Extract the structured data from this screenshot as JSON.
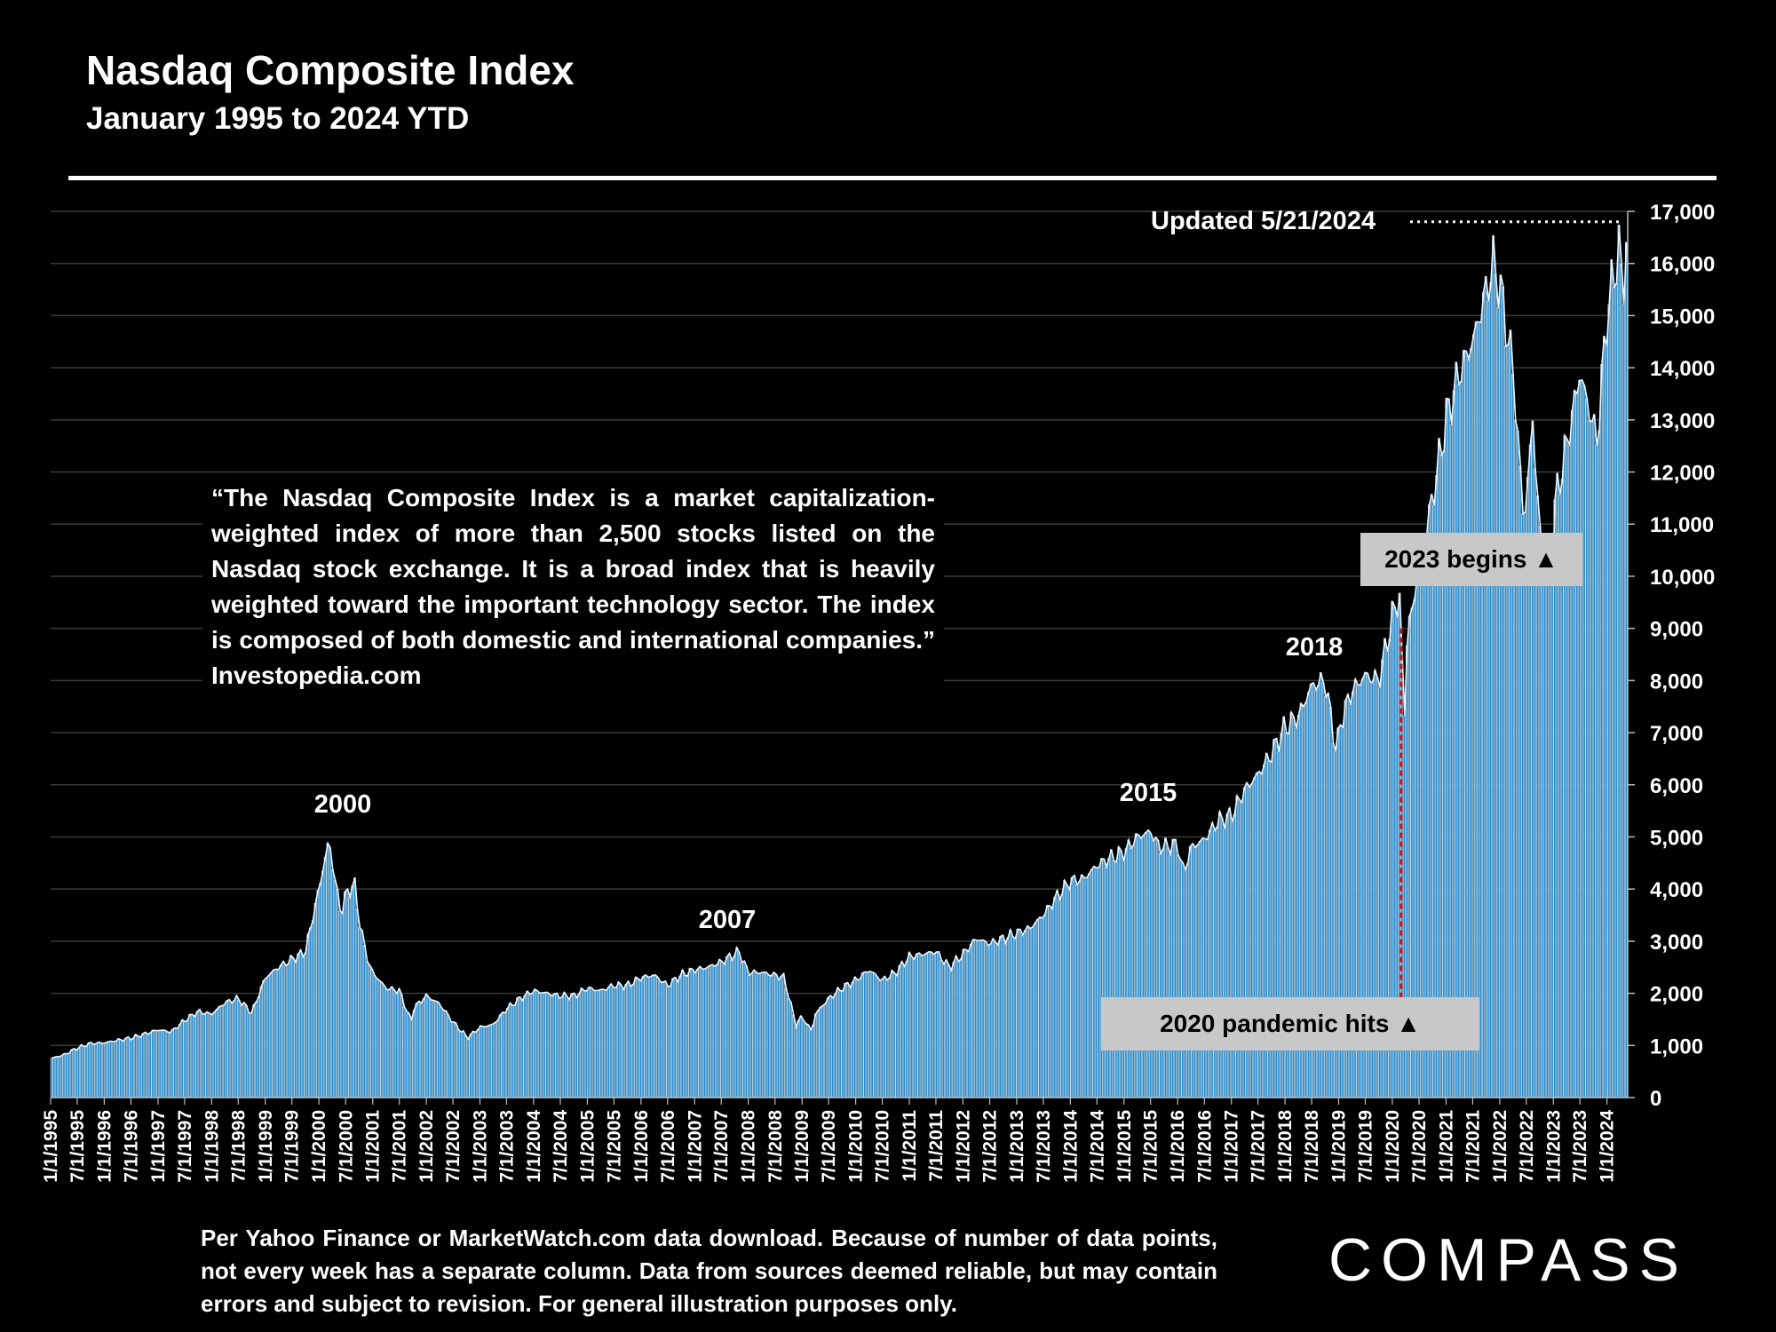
{
  "header": {
    "title": "Nasdaq Composite Index",
    "subtitle": "January 1995 to 2024 YTD"
  },
  "quote": "“The Nasdaq Composite Index is a market capitalization-weighted index of more than 2,500 stocks listed on the Nasdaq stock exchange. It is a broad index that is heavily weighted toward the important technology sector. The index is composed of both domestic and international companies.” Investopedia.com",
  "annotations": {
    "updated": "Updated 5/21/2024",
    "y2000": "2000",
    "y2007": "2007",
    "y2015": "2015",
    "y2018": "2018",
    "begins2023": "2023 begins ▲",
    "pandemic2020": "2020 pandemic hits ▲"
  },
  "footnote": "Per Yahoo Finance or MarketWatch.com data download. Because of number of data points, not every week has a separate column. Data from sources deemed reliable, but may contain errors and subject to revision. For general illustration purposes only.",
  "logo": "COMPASS",
  "colors": {
    "bar": "#2b8ccc",
    "bar_edge": "#d9eefb",
    "background": "#000000",
    "marker": "#cc1111",
    "tag_bg": "#c8c8c8"
  },
  "chart_data": {
    "type": "bar",
    "title": "Nasdaq Composite Index",
    "subtitle": "January 1995 to 2024 YTD",
    "ylim": [
      0,
      17000
    ],
    "yticks": [
      "0",
      "1,000",
      "2,000",
      "3,000",
      "4,000",
      "5,000",
      "6,000",
      "7,000",
      "8,000",
      "9,000",
      "10,000",
      "11,000",
      "12,000",
      "13,000",
      "14,000",
      "15,000",
      "16,000",
      "17,000"
    ],
    "ytick_values": [
      0,
      1000,
      2000,
      3000,
      4000,
      5000,
      6000,
      7000,
      8000,
      9000,
      10000,
      11000,
      12000,
      13000,
      14000,
      15000,
      16000,
      17000
    ],
    "grid": true,
    "x_start": "1/1/1995",
    "x_end": "5/21/2024",
    "xticks": [
      "1/1/1995",
      "7/1/1995",
      "1/1/1996",
      "7/1/1996",
      "1/1/1997",
      "7/1/1997",
      "1/1/1998",
      "7/1/1998",
      "1/1/1999",
      "7/1/1999",
      "1/1/2000",
      "7/1/2000",
      "1/1/2001",
      "7/1/2001",
      "1/1/2002",
      "7/1/2002",
      "1/1/2003",
      "7/1/2003",
      "1/1/2004",
      "7/1/2004",
      "1/1/2005",
      "7/1/2005",
      "1/1/2006",
      "7/1/2006",
      "1/1/2007",
      "7/1/2007",
      "1/1/2008",
      "7/1/2008",
      "1/1/2009",
      "7/1/2009",
      "1/1/2010",
      "7/1/2010",
      "1/1/2011",
      "7/1/2011",
      "1/1/2012",
      "7/1/2012",
      "1/1/2013",
      "7/1/2013",
      "1/1/2014",
      "7/1/2014",
      "1/1/2015",
      "7/1/2015",
      "1/1/2016",
      "7/1/2016",
      "1/1/2017",
      "7/1/2017",
      "1/1/2018",
      "7/1/2018",
      "1/1/2019",
      "7/1/2019",
      "1/1/2020",
      "7/1/2020",
      "1/1/2021",
      "7/1/2021",
      "1/1/2022",
      "7/1/2022",
      "1/1/2023",
      "7/1/2023",
      "1/1/2024"
    ],
    "series": [
      {
        "x": [
          "1/1/1995",
          "4/1/1995",
          "7/1/1995",
          "10/1/1995",
          "1/1/1996",
          "4/1/1996",
          "7/1/1996",
          "10/1/1996",
          "1/1/1997",
          "4/1/1997",
          "7/1/1997",
          "10/1/1997",
          "1/1/1998",
          "4/1/1998",
          "7/1/1998",
          "10/1/1998",
          "1/1/1999",
          "4/1/1999",
          "7/1/1999",
          "10/1/1999",
          "1/1/2000",
          "3/10/2000",
          "4/1/2000",
          "6/1/2000",
          "7/1/2000",
          "9/1/2000",
          "10/1/2000",
          "12/1/2000",
          "1/1/2001",
          "4/1/2001",
          "7/1/2001",
          "9/20/2001",
          "10/1/2001",
          "1/1/2002",
          "4/1/2002",
          "7/1/2002",
          "10/9/2002",
          "1/1/2003",
          "4/1/2003",
          "7/1/2003",
          "10/1/2003",
          "1/1/2004",
          "4/1/2004",
          "7/1/2004",
          "10/1/2004",
          "1/1/2005",
          "4/1/2005",
          "7/1/2005",
          "10/1/2005",
          "1/1/2006",
          "4/1/2006",
          "7/1/2006",
          "10/1/2006",
          "1/1/2007",
          "4/1/2007",
          "7/1/2007",
          "10/31/2007",
          "1/1/2008",
          "4/1/2008",
          "7/1/2008",
          "9/1/2008",
          "11/20/2008",
          "1/1/2009",
          "3/9/2009",
          "4/1/2009",
          "7/1/2009",
          "10/1/2009",
          "1/1/2010",
          "4/1/2010",
          "7/1/2010",
          "10/1/2010",
          "1/1/2011",
          "4/1/2011",
          "7/1/2011",
          "10/1/2011",
          "1/1/2012",
          "4/1/2012",
          "7/1/2012",
          "10/1/2012",
          "1/1/2013",
          "4/1/2013",
          "7/1/2013",
          "10/1/2013",
          "1/1/2014",
          "4/1/2014",
          "7/1/2014",
          "10/1/2014",
          "1/1/2015",
          "4/1/2015",
          "7/1/2015",
          "9/1/2015",
          "1/1/2016",
          "2/11/2016",
          "4/1/2016",
          "7/1/2016",
          "10/1/2016",
          "1/1/2017",
          "4/1/2017",
          "7/1/2017",
          "10/1/2017",
          "1/1/2018",
          "4/1/2018",
          "7/1/2018",
          "10/1/2018",
          "12/24/2018",
          "1/1/2019",
          "4/1/2019",
          "7/1/2019",
          "10/1/2019",
          "1/1/2020",
          "2/19/2020",
          "3/23/2020",
          "4/1/2020",
          "7/1/2020",
          "10/1/2020",
          "1/1/2021",
          "4/1/2021",
          "7/1/2021",
          "11/19/2021",
          "1/1/2022",
          "4/1/2022",
          "6/16/2022",
          "8/15/2022",
          "10/13/2022",
          "12/28/2022",
          "1/1/2023",
          "4/1/2023",
          "7/1/2023",
          "10/26/2023",
          "1/1/2024",
          "3/28/2024",
          "4/19/2024",
          "5/21/2024"
        ],
        "values": [
          750,
          820,
          950,
          1040,
          1050,
          1100,
          1140,
          1220,
          1300,
          1260,
          1480,
          1650,
          1600,
          1820,
          1900,
          1620,
          2300,
          2500,
          2650,
          2800,
          4000,
          4950,
          4500,
          3500,
          3900,
          4100,
          3400,
          2600,
          2400,
          2100,
          2050,
          1450,
          1700,
          1950,
          1800,
          1450,
          1150,
          1350,
          1400,
          1700,
          1900,
          2050,
          2000,
          1950,
          1950,
          2100,
          2050,
          2150,
          2150,
          2300,
          2350,
          2150,
          2350,
          2450,
          2500,
          2600,
          2800,
          2400,
          2400,
          2350,
          2300,
          1400,
          1550,
          1270,
          1600,
          1900,
          2100,
          2250,
          2450,
          2250,
          2400,
          2700,
          2750,
          2800,
          2500,
          2750,
          3050,
          2950,
          3050,
          3150,
          3250,
          3500,
          3850,
          4150,
          4200,
          4450,
          4600,
          4700,
          5000,
          5100,
          4800,
          4850,
          4300,
          4800,
          4950,
          5300,
          5400,
          5900,
          6200,
          6600,
          7100,
          7300,
          7900,
          8000,
          6500,
          7100,
          7800,
          8100,
          8000,
          9200,
          9700,
          7100,
          8600,
          10200,
          11500,
          13000,
          13900,
          14500,
          16000,
          15600,
          14000,
          11000,
          13000,
          10300,
          10200,
          11200,
          12500,
          13900,
          12600,
          15000,
          16400,
          15300,
          16800
        ]
      }
    ]
  }
}
